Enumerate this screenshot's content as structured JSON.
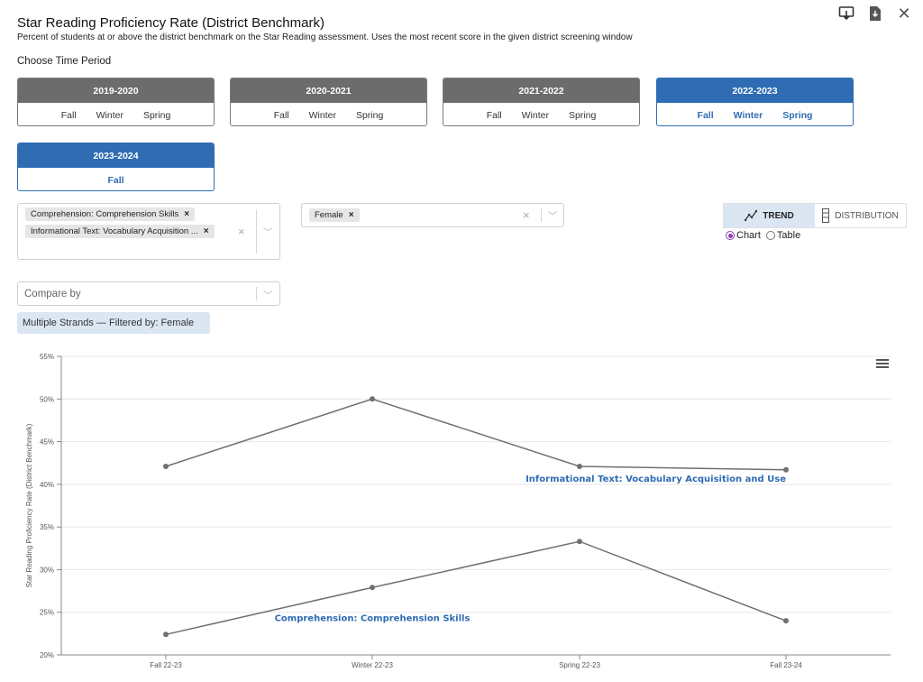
{
  "header": {
    "title": "Star Reading Proficiency Rate (District Benchmark)",
    "subtitle": "Percent of students at or above the district benchmark on the Star Reading assessment. Uses the most recent score in the given district screening window",
    "icons": [
      "screen-capture-icon",
      "pdf-download-icon",
      "close-icon"
    ],
    "close_glyph": "✕"
  },
  "time_period": {
    "label": "Choose Time Period",
    "years": [
      {
        "label": "2019-2020",
        "terms": [
          "Fall",
          "Winter",
          "Spring"
        ],
        "active": false
      },
      {
        "label": "2020-2021",
        "terms": [
          "Fall",
          "Winter",
          "Spring"
        ],
        "active": false
      },
      {
        "label": "2021-2022",
        "terms": [
          "Fall",
          "Winter",
          "Spring"
        ],
        "active": false
      },
      {
        "label": "2022-2023",
        "terms": [
          "Fall",
          "Winter",
          "Spring"
        ],
        "active": true
      },
      {
        "label": "2023-2024",
        "terms": [
          "Fall"
        ],
        "active": true
      }
    ]
  },
  "filters": {
    "strands": {
      "chips": [
        "Comprehension: Comprehension Skills",
        "Informational Text: Vocabulary Acquisition ..."
      ],
      "chip_remove": "×",
      "clear": "×",
      "caret": "﹀"
    },
    "group": {
      "chips": [
        "Female"
      ],
      "chip_remove": "×",
      "clear": "×",
      "caret": "﹀"
    },
    "compare": {
      "placeholder": "Compare by",
      "caret": "﹀"
    },
    "badge": "Multiple Strands — Filtered by: Female"
  },
  "view": {
    "trend_label": "TREND",
    "distribution_label": "DISTRIBUTION",
    "chart_option": "Chart",
    "table_option": "Table",
    "selected": "Chart"
  },
  "chart_data": {
    "type": "line",
    "x": [
      "Fall 22-23",
      "Winter 22-23",
      "Spring 22-23",
      "Fall 23-24"
    ],
    "ylabel": "Star Reading Proficiency Rate (District Benchmark)",
    "ylim": [
      20,
      55
    ],
    "yticks": [
      "20%",
      "25%",
      "30%",
      "35%",
      "40%",
      "45%",
      "50%",
      "55%"
    ],
    "grid": true,
    "series": [
      {
        "name": "Informational Text: Vocabulary Acquisition and Use",
        "values": [
          42.1,
          50.0,
          42.1,
          41.7
        ]
      },
      {
        "name": "Comprehension: Comprehension Skills",
        "values": [
          22.4,
          27.9,
          33.3,
          24.0
        ]
      }
    ],
    "line_color": "#707070",
    "label_color": "#2f6cb3"
  }
}
